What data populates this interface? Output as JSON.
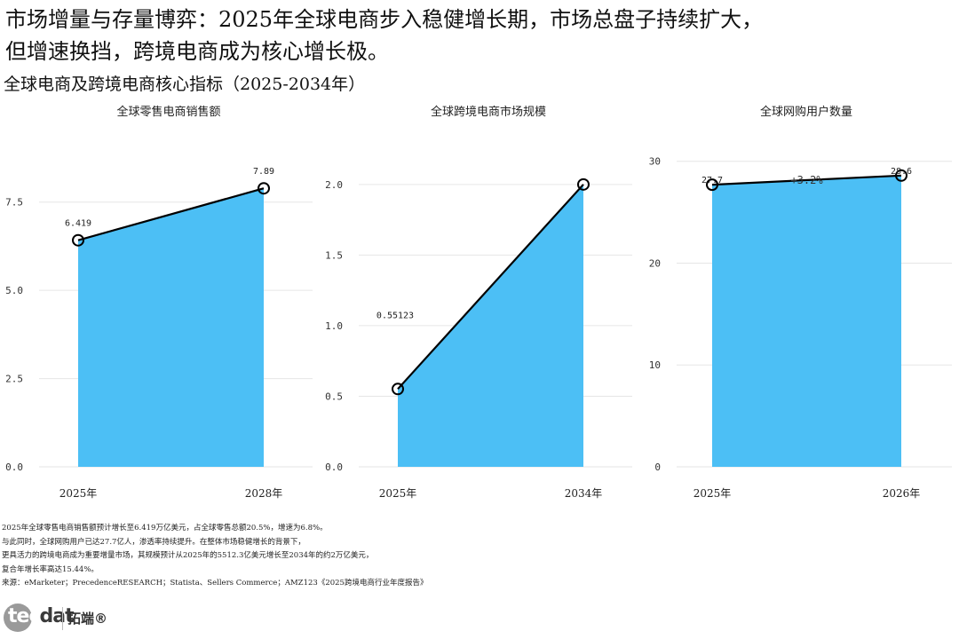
{
  "header": {
    "headline_line1": "市场增量与存量博弈：2025年全球电商步入稳健增长期，市场总盘子持续扩大，",
    "headline_line2": "但增速换挡，跨境电商成为核心增长极。",
    "subtitle": "全球电商及跨境电商核心指标（2025-2034年）"
  },
  "colors": {
    "fill": "#4cbff5",
    "line": "#000000",
    "grid": "#e6e6e6",
    "axis_text": "#333333"
  },
  "chart_data": [
    {
      "type": "area",
      "title": "全球零售电商销售额",
      "categories": [
        "2025年",
        "2028年"
      ],
      "values": [
        6.419,
        7.89
      ],
      "data_labels": [
        "6.419",
        "7.89"
      ],
      "ylim": [
        0,
        8.8
      ],
      "yticks": [
        0,
        2.5,
        5,
        7.5
      ],
      "ytick_labels": [
        "0.0",
        "2.5",
        "5.0",
        "7.5"
      ],
      "xlabel": "",
      "ylabel": ""
    },
    {
      "type": "area",
      "title": "全球跨境电商市场规模",
      "categories": [
        "2025年",
        "2034年"
      ],
      "values": [
        0.55123,
        2.0
      ],
      "data_labels": [
        "0.55123",
        ""
      ],
      "ylim": [
        0,
        2.2
      ],
      "yticks": [
        0,
        0.5,
        1,
        1.5,
        2
      ],
      "ytick_labels": [
        "0.0",
        "0.5",
        "1.0",
        "1.5",
        "2.0"
      ],
      "xlabel": "",
      "ylabel": ""
    },
    {
      "type": "area",
      "title": "全球网购用户数量",
      "categories": [
        "2025年",
        "2026年"
      ],
      "values": [
        27.7,
        28.6
      ],
      "data_labels": [
        "27.7",
        "28.6"
      ],
      "annotation": "+3.2%",
      "ylim": [
        0,
        30.5
      ],
      "yticks": [
        0,
        10,
        20,
        30
      ],
      "ytick_labels": [
        "0",
        "10",
        "20",
        "30"
      ],
      "xlabel": "",
      "ylabel": ""
    }
  ],
  "notes": [
    "2025年全球零售电商销售额预计增长至6.419万亿美元，占全球零售总额20.5%，增速为6.8%。",
    "与此同时，全球网购用户已达27.7亿人，渗透率持续提升。在整体市场稳健增长的背景下，",
    "更具活力的跨境电商成为重要增量市场，其规模预计从2025年的5512.3亿美元增长至2034年的约2万亿美元，",
    "复合年增长率高达15.44%。",
    "来源：eMarketer；PrecedenceRESEARCH；Statista、Sellers Commerce；AMZ123《2025跨境电商行业年度报告》"
  ],
  "logo": {
    "word_tec": "tec",
    "word_dat": "dat",
    "cn": "拓端®"
  }
}
